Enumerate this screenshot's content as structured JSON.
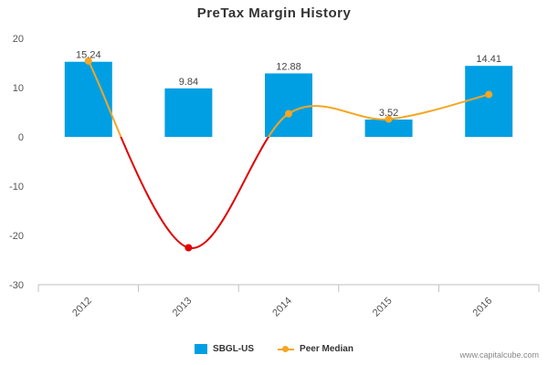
{
  "chart_data": {
    "type": "bar",
    "title": "PreTax Margin History",
    "categories": [
      "2012",
      "2013",
      "2014",
      "2015",
      "2016"
    ],
    "ylim": [
      -30,
      20
    ],
    "yticks": [
      20,
      10,
      0,
      -10,
      -20,
      -30
    ],
    "ytick_labels": [
      "20",
      "10",
      "0",
      "-10",
      "-20",
      "-30"
    ],
    "grid": false,
    "legend_position": "bottom-center",
    "series": [
      {
        "name": "SBGL-US",
        "type": "bar",
        "color": "#009FE3",
        "values": [
          15.24,
          9.84,
          12.88,
          3.52,
          14.41
        ],
        "labels": [
          "15.24",
          "9.84",
          "12.88",
          "3.52",
          "14.41"
        ]
      },
      {
        "name": "Peer Median",
        "type": "line",
        "color": "#F5A623",
        "negative_color": "#E00000",
        "values": [
          15.4,
          -22.5,
          4.7,
          3.6,
          8.6
        ]
      }
    ]
  },
  "watermark": "www.capitalcube.com"
}
